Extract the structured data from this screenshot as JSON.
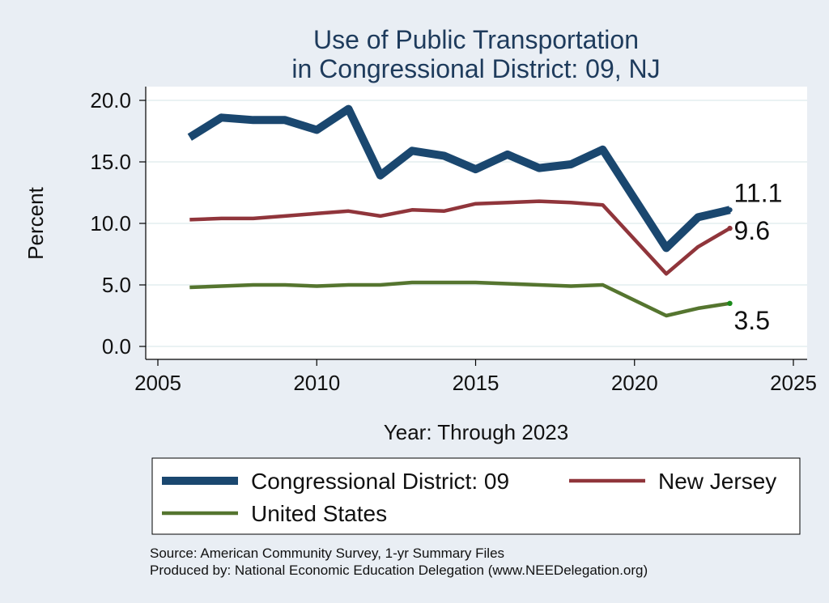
{
  "chart_data": {
    "type": "line",
    "title": [
      "Use of Public Transportation",
      "in Congressional District: 09, NJ"
    ],
    "xlabel": "Year: Through 2023",
    "ylabel": "Percent",
    "xlim": [
      2005,
      2025
    ],
    "ylim": [
      0,
      20
    ],
    "xticks": [
      2005,
      2010,
      2015,
      2020,
      2025
    ],
    "yticks": [
      0,
      5,
      10,
      15,
      20
    ],
    "ytick_labels": [
      "0.0",
      "5.0",
      "10.0",
      "15.0",
      "20.0"
    ],
    "grid": true,
    "legend_position": "bottom",
    "x": [
      2006,
      2007,
      2008,
      2009,
      2010,
      2011,
      2012,
      2013,
      2014,
      2015,
      2016,
      2017,
      2018,
      2019,
      2021,
      2022,
      2023
    ],
    "series": [
      {
        "name": "Congressional District: 09",
        "color": "#1a476f",
        "end_label": "11.1",
        "values": [
          17.0,
          18.6,
          18.4,
          18.4,
          17.6,
          19.3,
          13.9,
          15.9,
          15.5,
          14.4,
          15.6,
          14.5,
          14.8,
          16.0,
          8.0,
          10.5,
          11.1
        ]
      },
      {
        "name": "New Jersey",
        "color": "#90353b",
        "end_label": "9.6",
        "values": [
          10.3,
          10.4,
          10.4,
          10.6,
          10.8,
          11.0,
          10.6,
          11.1,
          11.0,
          11.6,
          11.7,
          11.8,
          11.7,
          11.5,
          5.9,
          8.1,
          9.6
        ]
      },
      {
        "name": "United States",
        "color": "#55752f",
        "end_label": "3.5",
        "values": [
          4.8,
          4.9,
          5.0,
          5.0,
          4.9,
          5.0,
          5.0,
          5.2,
          5.2,
          5.2,
          5.1,
          5.0,
          4.9,
          5.0,
          2.5,
          3.1,
          3.5
        ]
      }
    ]
  },
  "source": {
    "line1": "Source: American Community Survey, 1-yr Summary Files",
    "line2": "Produced by: National Economic Education Delegation (www.NEEDelegation.org)"
  }
}
